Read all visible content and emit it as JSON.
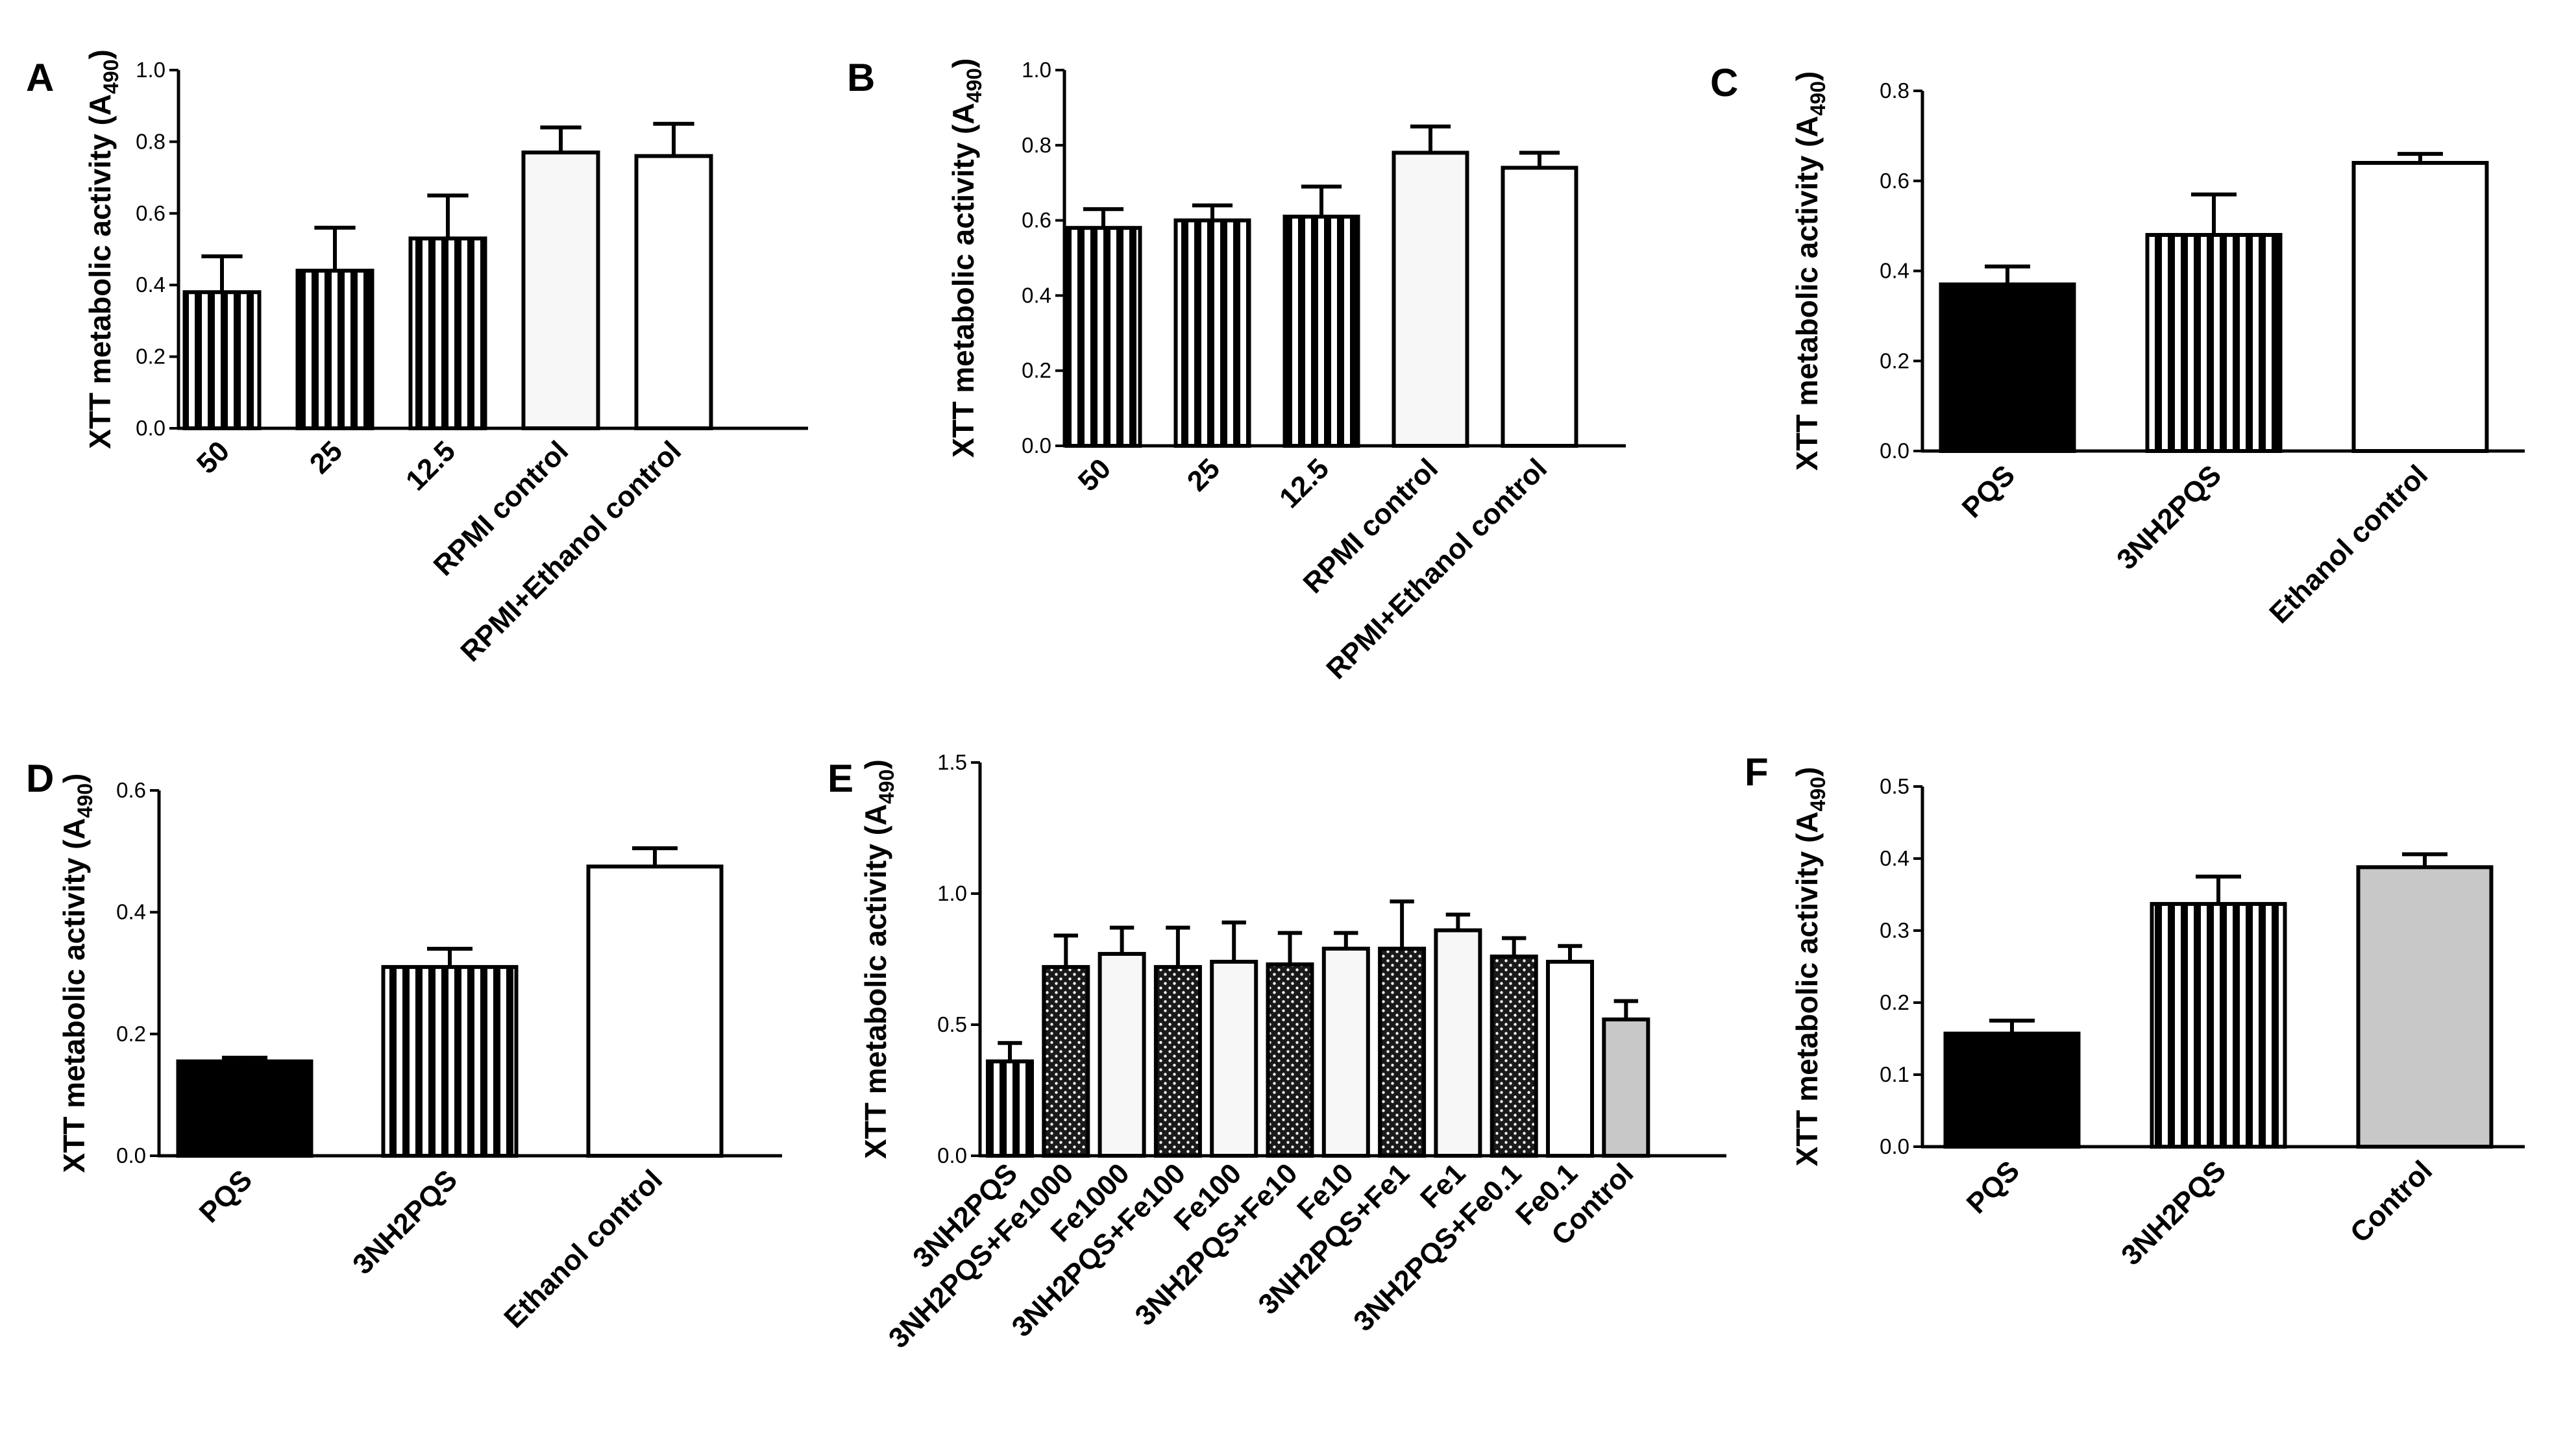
{
  "colors": {
    "black": "#000000",
    "white": "#ffffff",
    "light": "#f7f7f7",
    "gray": "#c8c8c8"
  },
  "chart_data": [
    {
      "panel": "A",
      "type": "bar",
      "ylabel_main": "XTT metabolic activity (A",
      "ylabel_sub": "490",
      "ylabel_close": ")",
      "ylim": [
        0,
        1.0
      ],
      "yticks": [
        "0.0",
        "0.2",
        "0.4",
        "0.6",
        "0.8",
        "1.0"
      ],
      "categories": [
        "50",
        "25",
        "12.5",
        "RPMI control",
        "RPMI+Ethanol control"
      ],
      "values": [
        0.38,
        0.44,
        0.53,
        0.77,
        0.76
      ],
      "errors": [
        0.1,
        0.12,
        0.12,
        0.07,
        0.09
      ],
      "fills": [
        "vstripes",
        "vstripes",
        "vstripes",
        "light",
        "white"
      ]
    },
    {
      "panel": "B",
      "type": "bar",
      "ylabel_main": "XTT metabolic activity (A",
      "ylabel_sub": "490",
      "ylabel_close": ")",
      "ylim": [
        0,
        1.0
      ],
      "yticks": [
        "0.0",
        "0.2",
        "0.4",
        "0.6",
        "0.8",
        "1.0"
      ],
      "categories": [
        "50",
        "25",
        "12.5",
        "RPMI control",
        "RPMI+Ethanol control"
      ],
      "values": [
        0.58,
        0.6,
        0.61,
        0.78,
        0.74
      ],
      "errors": [
        0.05,
        0.04,
        0.08,
        0.07,
        0.04
      ],
      "fills": [
        "vstripes",
        "vstripes",
        "vstripes",
        "light",
        "white"
      ]
    },
    {
      "panel": "C",
      "type": "bar",
      "ylabel_main": "XTT metabolic activity (A",
      "ylabel_sub": "490",
      "ylabel_close": ")",
      "ylim": [
        0,
        0.8
      ],
      "yticks": [
        "0.0",
        "0.2",
        "0.4",
        "0.6",
        "0.8"
      ],
      "categories": [
        "PQS",
        "3NH2PQS",
        "Ethanol control"
      ],
      "values": [
        0.37,
        0.48,
        0.64
      ],
      "errors": [
        0.04,
        0.09,
        0.02
      ],
      "fills": [
        "black",
        "vstripes",
        "white"
      ]
    },
    {
      "panel": "D",
      "type": "bar",
      "ylabel_main": "XTT metabolic activity (A",
      "ylabel_sub": "490",
      "ylabel_close": ")",
      "ylim": [
        0,
        0.6
      ],
      "yticks": [
        "0.0",
        "0.2",
        "0.4",
        "0.6"
      ],
      "categories": [
        "PQS",
        "3NH2PQS",
        "Ethanol control"
      ],
      "values": [
        0.155,
        0.31,
        0.475
      ],
      "errors": [
        0.006,
        0.03,
        0.03
      ],
      "fills": [
        "black",
        "vstripes",
        "white"
      ]
    },
    {
      "panel": "E",
      "type": "bar",
      "ylabel_main": "XTT metabolic activity (A",
      "ylabel_sub": "490",
      "ylabel_close": ")",
      "ylim": [
        0,
        1.5
      ],
      "yticks": [
        "0.0",
        "0.5",
        "1.0",
        "1.5"
      ],
      "categories": [
        "3NH2PQS",
        "3NH2PQS+Fe1000",
        "Fe1000",
        "3NH2PQS+Fe100",
        "Fe100",
        "3NH2PQS+Fe10",
        "Fe10",
        "3NH2PQS+Fe1",
        "Fe1",
        "3NH2PQS+Fe0.1",
        "Fe0.1",
        "Control"
      ],
      "values": [
        0.36,
        0.72,
        0.77,
        0.72,
        0.74,
        0.73,
        0.79,
        0.79,
        0.86,
        0.76,
        0.74,
        0.52
      ],
      "errors": [
        0.07,
        0.12,
        0.1,
        0.15,
        0.15,
        0.12,
        0.06,
        0.18,
        0.06,
        0.07,
        0.06,
        0.07
      ],
      "fills": [
        "vstripes",
        "dots",
        "light",
        "dots",
        "light",
        "dots",
        "light",
        "dots",
        "light",
        "dots",
        "white",
        "gray"
      ]
    },
    {
      "panel": "F",
      "type": "bar",
      "ylabel_main": "XTT metabolic activity (A",
      "ylabel_sub": "490",
      "ylabel_close": ")",
      "ylim": [
        0,
        0.5
      ],
      "yticks": [
        "0.0",
        "0.1",
        "0.2",
        "0.3",
        "0.4",
        "0.5"
      ],
      "categories": [
        "PQS",
        "3NH2PQS",
        "Control"
      ],
      "values": [
        0.157,
        0.337,
        0.388
      ],
      "errors": [
        0.018,
        0.038,
        0.018
      ],
      "fills": [
        "black",
        "vstripes",
        "gray"
      ]
    }
  ]
}
